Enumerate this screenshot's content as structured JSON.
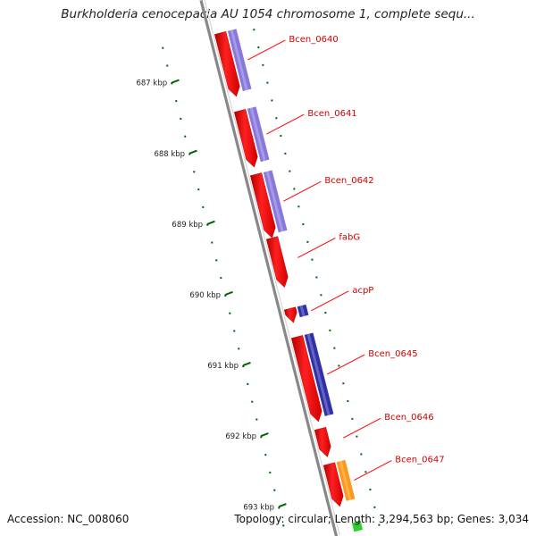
{
  "title": "Burkholderia cenocepacia AU 1054 chromosome 1, complete sequ...",
  "footer": {
    "accession": "Accession: NC_008060",
    "summary": "Topology: circular; Length: 3,294,563 bp; Genes: 3,034"
  },
  "ticks": [
    {
      "kbp": 687,
      "label": "687 kbp"
    },
    {
      "kbp": 688,
      "label": "688 kbp"
    },
    {
      "kbp": 689,
      "label": "689 kbp"
    },
    {
      "kbp": 690,
      "label": "690 kbp"
    },
    {
      "kbp": 691,
      "label": "691 kbp"
    },
    {
      "kbp": 692,
      "label": "692 kbp"
    },
    {
      "kbp": 693,
      "label": "693 kbp"
    }
  ],
  "genes": [
    {
      "name": "Bcen_0640",
      "start_kbp": 686.5,
      "end_kbp": 687.4,
      "strand": "reverse",
      "cds_color": "#ff0000",
      "feature_color": "#7b68d8"
    },
    {
      "name": "Bcen_0641",
      "start_kbp": 687.6,
      "end_kbp": 688.4,
      "strand": "reverse",
      "cds_color": "#ff0000",
      "feature_color": "#7b68d8"
    },
    {
      "name": "Bcen_0642",
      "start_kbp": 688.5,
      "end_kbp": 689.4,
      "strand": "reverse",
      "cds_color": "#ff0000",
      "feature_color": "#7b68d8"
    },
    {
      "name": "fabG",
      "start_kbp": 689.4,
      "end_kbp": 690.1,
      "strand": "reverse",
      "cds_color": "#ff0000",
      "feature_color": null
    },
    {
      "name": "acpP",
      "start_kbp": 690.4,
      "end_kbp": 690.6,
      "strand": "reverse",
      "cds_color": "#ff0000",
      "feature_color": "#1a1aa0"
    },
    {
      "name": "Bcen_0645",
      "start_kbp": 690.8,
      "end_kbp": 692.0,
      "strand": "reverse",
      "cds_color": "#ff0000",
      "feature_color": "#1a1aa0"
    },
    {
      "name": "Bcen_0646",
      "start_kbp": 692.1,
      "end_kbp": 692.5,
      "strand": "reverse",
      "cds_color": "#ff0000",
      "feature_color": null
    },
    {
      "name": "Bcen_0647",
      "start_kbp": 692.6,
      "end_kbp": 693.2,
      "strand": "reverse",
      "cds_color": "#ff0000",
      "feature_color": "#ff8c00"
    }
  ],
  "colors": {
    "backbone": "#888888",
    "tick": "#006400",
    "label_line": "#ff0000",
    "partial_next_feature": "#33cc33"
  }
}
